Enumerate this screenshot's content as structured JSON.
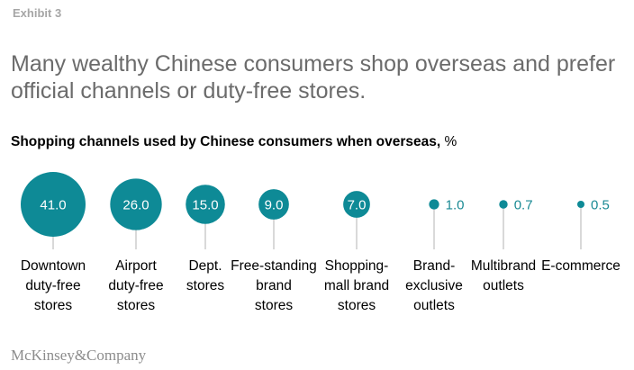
{
  "exhibit_label": "Exhibit 3",
  "headline": "Many wealthy Chinese consumers shop overseas and prefer official channels or duty-free stores.",
  "subtitle_main": "Shopping channels used by Chinese consumers when overseas,",
  "subtitle_unit": "%",
  "logo": "McKinsey&Company",
  "colors": {
    "bubble": "#0e8a96",
    "leader": "#b3b3b3",
    "value_outside": "#1a8a94",
    "value_inside": "#ffffff"
  },
  "chart_data": {
    "type": "bubble",
    "unit": "%",
    "title": "Shopping channels used by Chinese consumers when overseas",
    "categories": [
      [
        "Downtown",
        "duty-free",
        "stores"
      ],
      [
        "Airport",
        "duty-free",
        "stores"
      ],
      [
        "Dept.",
        "stores"
      ],
      [
        "Free-standing",
        "brand",
        "stores"
      ],
      [
        "Shopping-",
        "mall brand",
        "stores"
      ],
      [
        "Brand-",
        "exclusive",
        "outlets"
      ],
      [
        "Multibrand",
        "outlets"
      ],
      [
        "E-commerce"
      ]
    ],
    "values": [
      41.0,
      26.0,
      15.0,
      9.0,
      7.0,
      1.0,
      0.7,
      0.5
    ],
    "value_labels": [
      "41.0",
      "26.0",
      "15.0",
      "9.0",
      "7.0",
      "1.0",
      "0.7",
      "0.5"
    ]
  }
}
